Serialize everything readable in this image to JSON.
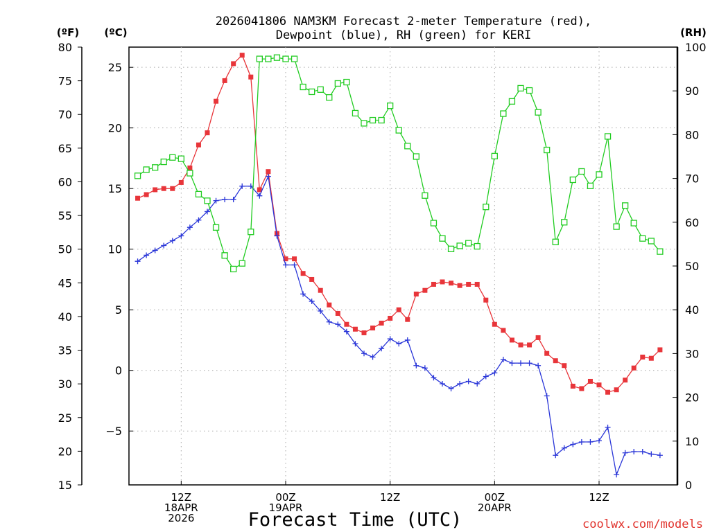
{
  "chart_data": {
    "type": "line",
    "title_line1": "2026041806 NAM3KM Forecast 2-meter Temperature (red),",
    "title_line2": "Dewpoint (blue), RH (green) for KERI",
    "xlabel": "Forecast Time (UTC)",
    "watermark": "coolwx.com/models",
    "left_outer_unit": "(ºF)",
    "left_inner_unit": "(ºC)",
    "right_unit": "(RH)",
    "x_range_hours": [
      0,
      63
    ],
    "x_ticks": [
      {
        "hour": 6,
        "line1": "12Z",
        "line2": "18APR",
        "line3": "2026"
      },
      {
        "hour": 18,
        "line1": "00Z",
        "line2": "19APR",
        "line3": ""
      },
      {
        "hour": 30,
        "line1": "12Z",
        "line2": "",
        "line3": ""
      },
      {
        "hour": 42,
        "line1": "00Z",
        "line2": "20APR",
        "line3": ""
      },
      {
        "hour": 54,
        "line1": "12Z",
        "line2": "",
        "line3": ""
      }
    ],
    "ylim_c": [
      -9.444,
      26.667
    ],
    "y_ticks_c": [
      -5,
      0,
      5,
      10,
      15,
      20,
      25
    ],
    "y_ticks_f": [
      15,
      20,
      25,
      30,
      35,
      40,
      45,
      50,
      55,
      60,
      65,
      70,
      75,
      80
    ],
    "ylim_rh": [
      0,
      100
    ],
    "y_ticks_rh": [
      0,
      10,
      20,
      30,
      40,
      50,
      60,
      70,
      80,
      90,
      100
    ],
    "colors": {
      "temperature": "#e8353a",
      "dewpoint": "#2a36d8",
      "rh": "#22cc22",
      "watermark": "#e0302a"
    },
    "series": [
      {
        "name": "Temperature (°C)",
        "axis": "c",
        "marker": "square-filled",
        "values": [
          14.2,
          14.5,
          14.9,
          15.0,
          15.0,
          15.5,
          16.7,
          18.6,
          19.6,
          22.2,
          23.9,
          25.3,
          26.0,
          24.2,
          14.9,
          16.4,
          11.3,
          9.2,
          9.2,
          8.0,
          7.5,
          6.6,
          5.4,
          4.7,
          3.8,
          3.4,
          3.1,
          3.5,
          3.9,
          4.3,
          5.0,
          4.2,
          6.3,
          6.6,
          7.1,
          7.3,
          7.2,
          7.0,
          7.1,
          7.1,
          5.8,
          3.8,
          3.3,
          2.5,
          2.1,
          2.1,
          2.7,
          1.4,
          0.8,
          0.4,
          -1.3,
          -1.5,
          -0.9,
          -1.2,
          -1.8,
          -1.6,
          -0.8,
          0.2,
          1.1,
          1.0,
          1.7
        ]
      },
      {
        "name": "Dewpoint (°C)",
        "axis": "c",
        "marker": "plus",
        "values": [
          9.0,
          9.5,
          9.9,
          10.3,
          10.7,
          11.1,
          11.8,
          12.4,
          13.1,
          14.0,
          14.1,
          14.1,
          15.2,
          15.2,
          14.4,
          16.0,
          11.1,
          8.7,
          8.7,
          6.3,
          5.7,
          4.9,
          4.0,
          3.8,
          3.2,
          2.2,
          1.4,
          1.1,
          1.8,
          2.6,
          2.2,
          2.5,
          0.4,
          0.2,
          -0.6,
          -1.1,
          -1.5,
          -1.1,
          -0.9,
          -1.1,
          -0.5,
          -0.2,
          0.9,
          0.6,
          0.6,
          0.6,
          0.4,
          -2.1,
          -7.0,
          -6.4,
          -6.1,
          -5.9,
          -5.9,
          -5.8,
          -4.7,
          -8.6,
          -6.8,
          -6.7,
          -6.7,
          -6.9,
          -7.0
        ]
      },
      {
        "name": "Relative Humidity (%)",
        "axis": "rh",
        "marker": "square-open",
        "values": [
          70.6,
          72.0,
          72.5,
          73.8,
          74.8,
          74.5,
          71.2,
          66.4,
          64.9,
          58.8,
          52.4,
          49.3,
          50.6,
          57.8,
          97.3,
          97.3,
          97.6,
          97.3,
          97.3,
          90.9,
          89.8,
          90.3,
          88.5,
          91.7,
          92.0,
          84.9,
          82.6,
          83.3,
          83.3,
          86.6,
          81.0,
          77.4,
          75.0,
          66.1,
          59.8,
          56.3,
          53.9,
          54.6,
          55.2,
          54.5,
          63.5,
          75.1,
          84.8,
          87.6,
          90.6,
          90.1,
          85.1,
          76.5,
          55.5,
          60.0,
          69.7,
          71.6,
          68.3,
          70.9,
          79.6,
          59.0,
          63.8,
          59.8,
          56.3,
          55.7,
          53.3
        ]
      }
    ]
  }
}
